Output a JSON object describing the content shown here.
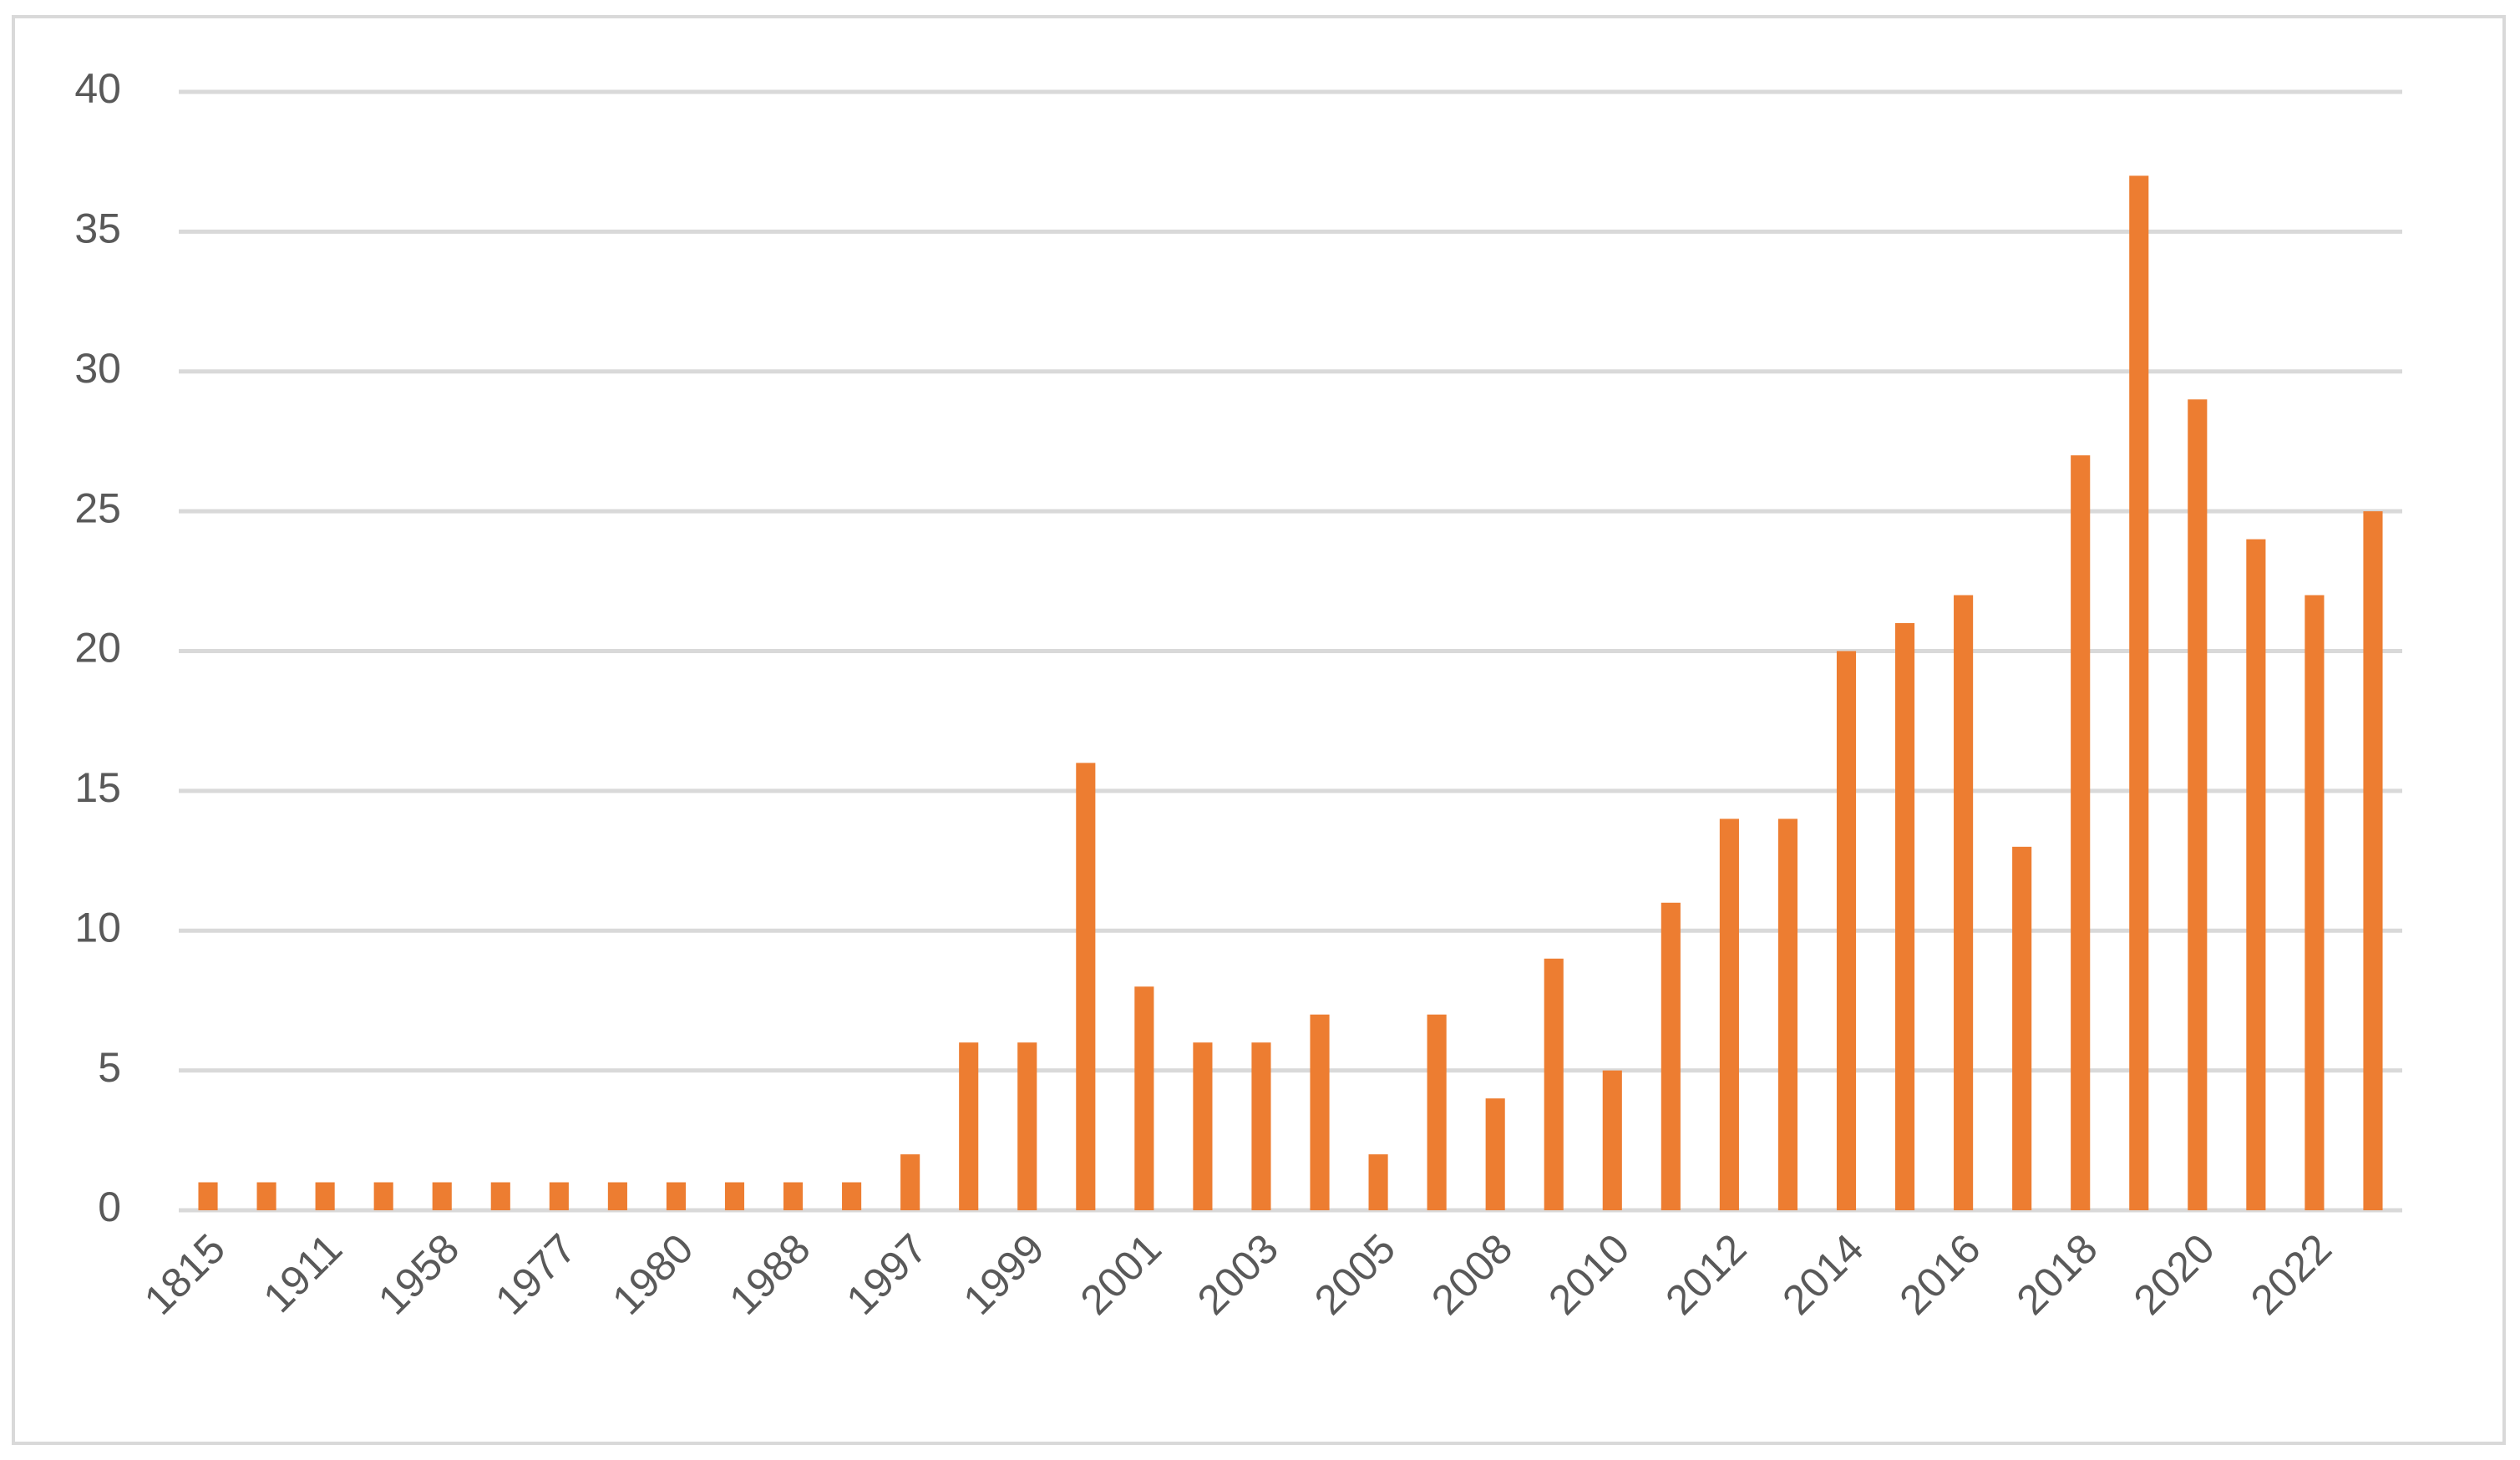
{
  "chart_data": {
    "type": "bar",
    "categories": [
      "1815",
      null,
      "1911",
      null,
      "1958",
      null,
      "1977",
      null,
      "1980",
      null,
      "1988",
      null,
      "1997",
      null,
      "1999",
      null,
      "2001",
      null,
      "2003",
      null,
      "2005",
      null,
      "2008",
      null,
      "2010",
      null,
      "2012",
      null,
      "2014",
      null,
      "2016",
      null,
      "2018",
      null,
      "2020",
      null,
      "2022",
      null
    ],
    "values": [
      1,
      1,
      1,
      1,
      1,
      1,
      1,
      1,
      1,
      1,
      1,
      1,
      2,
      6,
      6,
      16,
      8,
      6,
      6,
      7,
      2,
      7,
      4,
      9,
      5,
      11,
      14,
      14,
      20,
      21,
      22,
      13,
      27,
      37,
      29,
      24,
      22,
      25
    ],
    "color": "#ed7d31",
    "ylim": [
      0,
      40
    ],
    "yticks": [
      0,
      5,
      10,
      15,
      20,
      25,
      30,
      35,
      40
    ],
    "grid": true
  }
}
